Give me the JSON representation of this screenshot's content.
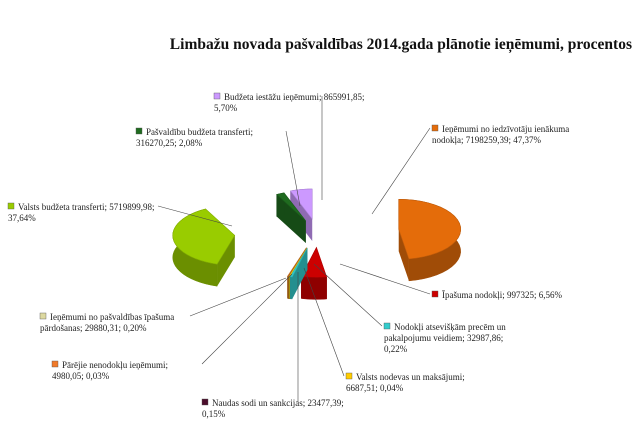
{
  "chart_data": {
    "type": "pie",
    "title": "Limbažu novada pašvaldības 2014.gada plānotie ieņēmumi, procentos",
    "slices": [
      {
        "name": "Ieņēmumi no iedzīvotāju ienākuma nodokļa",
        "value": 7198259.39,
        "value_text": "7198259,39",
        "percent": 47.37,
        "percent_text": "47,37%",
        "color": "#e46c0a"
      },
      {
        "name": "Īpašuma nodokļi",
        "value": 997325,
        "value_text": "997325",
        "percent": 6.56,
        "percent_text": "6,56%",
        "color": "#cc0000"
      },
      {
        "name": "Nodokļi atsevišķām precēm un pakalpojumu veidiem",
        "value": 32987.86,
        "value_text": "32987,86",
        "percent": 0.22,
        "percent_text": "0,22%",
        "color": "#33cccc"
      },
      {
        "name": "Valsts nodevas un maksājumi",
        "value": 6687.51,
        "value_text": "6687,51",
        "percent": 0.04,
        "percent_text": "0,04%",
        "color": "#ffcc00"
      },
      {
        "name": "Naudas sodi un sankcijas",
        "value": 23477.39,
        "value_text": "23477,39",
        "percent": 0.15,
        "percent_text": "0,15%",
        "color": "#4b0d2b"
      },
      {
        "name": "Pārējie nenodokļu ieņēmumi",
        "value": 4980.05,
        "value_text": "4980,05",
        "percent": 0.03,
        "percent_text": "0,03%",
        "color": "#f07a2a"
      },
      {
        "name": "Ieņēmumi no pašvaldības īpašuma pārdošanas",
        "value": 29880.31,
        "value_text": "29880,31",
        "percent": 0.2,
        "percent_text": "0,20%",
        "color": "#ddd9a0"
      },
      {
        "name": "Valsts budžeta transferti",
        "value": 5719899.98,
        "value_text": "5719899,98",
        "percent": 37.64,
        "percent_text": "37,64%",
        "color": "#99cc00"
      },
      {
        "name": "Pašvaldību budžeta transferti",
        "value": 316270.25,
        "value_text": "316270,25",
        "percent": 2.08,
        "percent_text": "2,08%",
        "color": "#1f6b1f"
      },
      {
        "name": "Budžeta iestāžu ieņēmumi",
        "value": 865991.85,
        "value_text": "865991,85",
        "percent": 5.7,
        "percent_text": "5,70%",
        "color": "#cc99ff"
      }
    ]
  }
}
